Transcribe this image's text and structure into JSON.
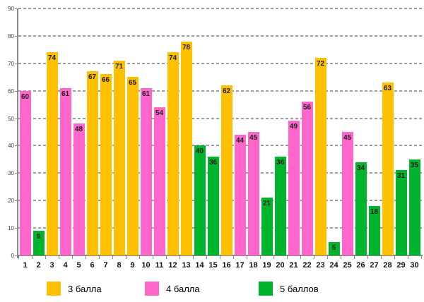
{
  "chart_data": {
    "type": "bar",
    "title": "",
    "xlabel": "",
    "ylabel": "",
    "categories": [
      "1",
      "2",
      "3",
      "4",
      "5",
      "6",
      "7",
      "8",
      "9",
      "10",
      "11",
      "12",
      "13",
      "14",
      "15",
      "16",
      "17",
      "18",
      "19",
      "20",
      "21",
      "22",
      "23",
      "24",
      "25",
      "26",
      "27",
      "28",
      "29",
      "30"
    ],
    "values": [
      60,
      9,
      74,
      61,
      48,
      67,
      66,
      71,
      65,
      61,
      54,
      74,
      78,
      40,
      36,
      62,
      44,
      45,
      21,
      36,
      49,
      56,
      72,
      5,
      45,
      34,
      18,
      63,
      31,
      35
    ],
    "bar_scores": [
      4,
      5,
      3,
      4,
      4,
      3,
      3,
      3,
      3,
      4,
      4,
      3,
      3,
      5,
      5,
      3,
      4,
      4,
      5,
      5,
      4,
      4,
      3,
      5,
      4,
      5,
      5,
      3,
      5,
      5
    ],
    "ylim": [
      0,
      90
    ],
    "yticks": [
      0,
      10,
      20,
      30,
      40,
      50,
      60,
      70,
      80,
      90
    ],
    "grid": "horizontal-dashed",
    "value_labels": "inside-bar-top",
    "colors": {
      "3": "#ffc000",
      "4": "#ff66cc",
      "5": "#00b42d"
    },
    "legend_position": "bottom",
    "legend": [
      {
        "label": "3 балла",
        "score": 3,
        "color": "#ffc000"
      },
      {
        "label": "4 балла",
        "score": 4,
        "color": "#ff66cc"
      },
      {
        "label": "5 баллов",
        "score": 5,
        "color": "#00b42d"
      }
    ]
  }
}
